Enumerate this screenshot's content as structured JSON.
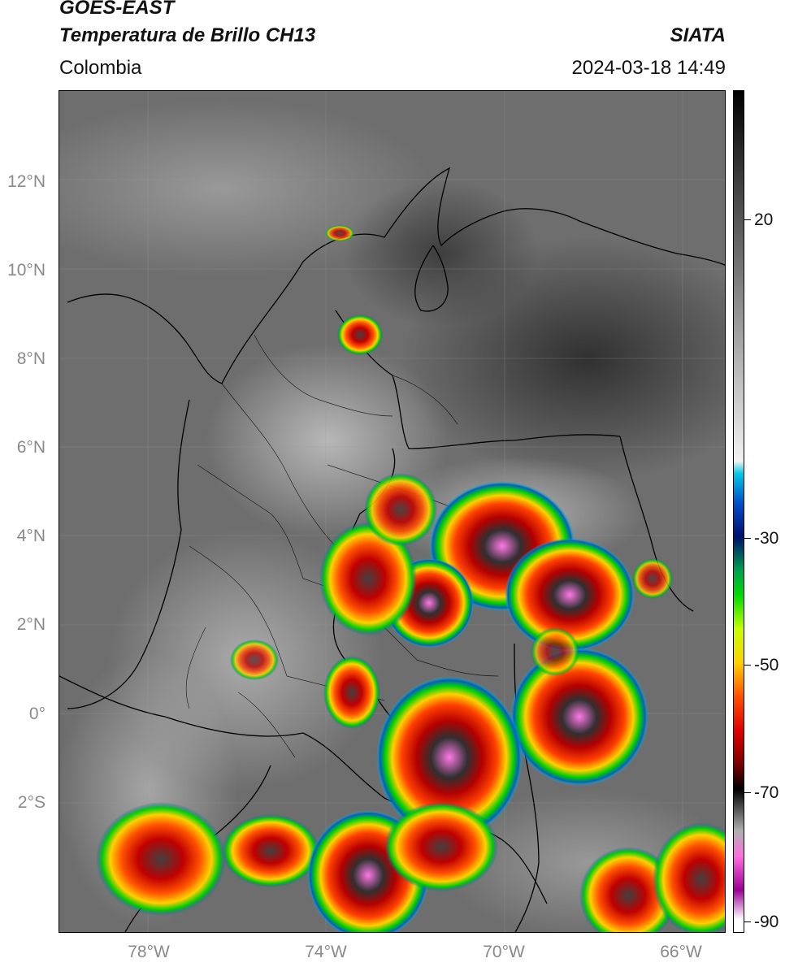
{
  "header": {
    "title_line1": "GOES-EAST",
    "title_line2": "Temperatura de Brillo CH13",
    "brand": "SIATA",
    "region": "Colombia",
    "datetime": "2024-03-18 14:49"
  },
  "map": {
    "lat_labels": [
      "12°N",
      "10°N",
      "8°N",
      "6°N",
      "4°N",
      "2°N",
      "0°",
      "2°S"
    ],
    "lon_labels": [
      "78°W",
      "74°W",
      "70°W",
      "66°W"
    ]
  },
  "colorbar": {
    "labels": [
      "20",
      "-30",
      "-50",
      "-70",
      "-90"
    ],
    "stops": [
      "#000000",
      "#3a3a3a",
      "#7a7a7a",
      "#bdbdbd",
      "#f2f2f2",
      "#00c8e6",
      "#0050c8",
      "#00106e",
      "#00a050",
      "#00dc00",
      "#c8ff00",
      "#ffd000",
      "#ff5000",
      "#e00000",
      "#7a0000",
      "#000000",
      "#b0b0b0",
      "#ff6ee0",
      "#9b0095",
      "#ffffff"
    ]
  }
}
